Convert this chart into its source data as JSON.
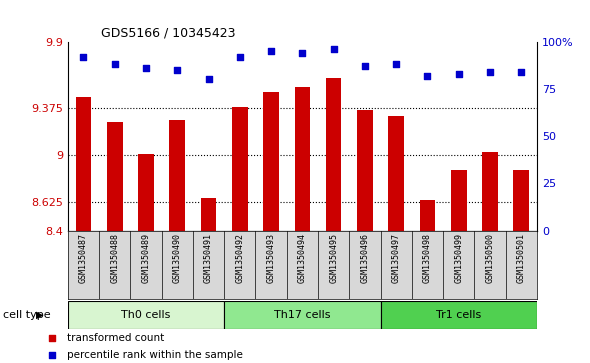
{
  "title": "GDS5166 / 10345423",
  "samples": [
    "GSM1350487",
    "GSM1350488",
    "GSM1350489",
    "GSM1350490",
    "GSM1350491",
    "GSM1350492",
    "GSM1350493",
    "GSM1350494",
    "GSM1350495",
    "GSM1350496",
    "GSM1350497",
    "GSM1350498",
    "GSM1350499",
    "GSM1350500",
    "GSM1350501"
  ],
  "transformed_count": [
    9.46,
    9.26,
    9.01,
    9.28,
    8.66,
    9.38,
    9.5,
    9.54,
    9.61,
    9.36,
    9.31,
    8.64,
    8.88,
    9.02,
    8.88
  ],
  "percentile_rank": [
    92,
    88,
    86,
    85,
    80,
    92,
    95,
    94,
    96,
    87,
    88,
    82,
    83,
    84,
    84
  ],
  "cell_groups": [
    {
      "label": "Th0 cells",
      "start": 0,
      "end": 5,
      "color": "#d8f5d0"
    },
    {
      "label": "Th17 cells",
      "start": 5,
      "end": 10,
      "color": "#90e890"
    },
    {
      "label": "Tr1 cells",
      "start": 10,
      "end": 15,
      "color": "#50d050"
    }
  ],
  "ylim_left": [
    8.4,
    9.9
  ],
  "ylim_right": [
    0,
    100
  ],
  "yticks_left": [
    8.4,
    8.625,
    9.0,
    9.375,
    9.9
  ],
  "yticks_right": [
    0,
    25,
    50,
    75,
    100
  ],
  "ytick_labels_left": [
    "8.4",
    "8.625",
    "9",
    "9.375",
    "9.9"
  ],
  "ytick_labels_right": [
    "0",
    "25",
    "50",
    "75",
    "100%"
  ],
  "bar_color": "#cc0000",
  "dot_color": "#0000cc",
  "bar_width": 0.5,
  "grid_color": "#000000",
  "bg_color": "#d8d8d8",
  "cell_type_label": "cell type",
  "legend_items": [
    {
      "color": "#cc0000",
      "label": "transformed count"
    },
    {
      "color": "#0000cc",
      "label": "percentile rank within the sample"
    }
  ]
}
